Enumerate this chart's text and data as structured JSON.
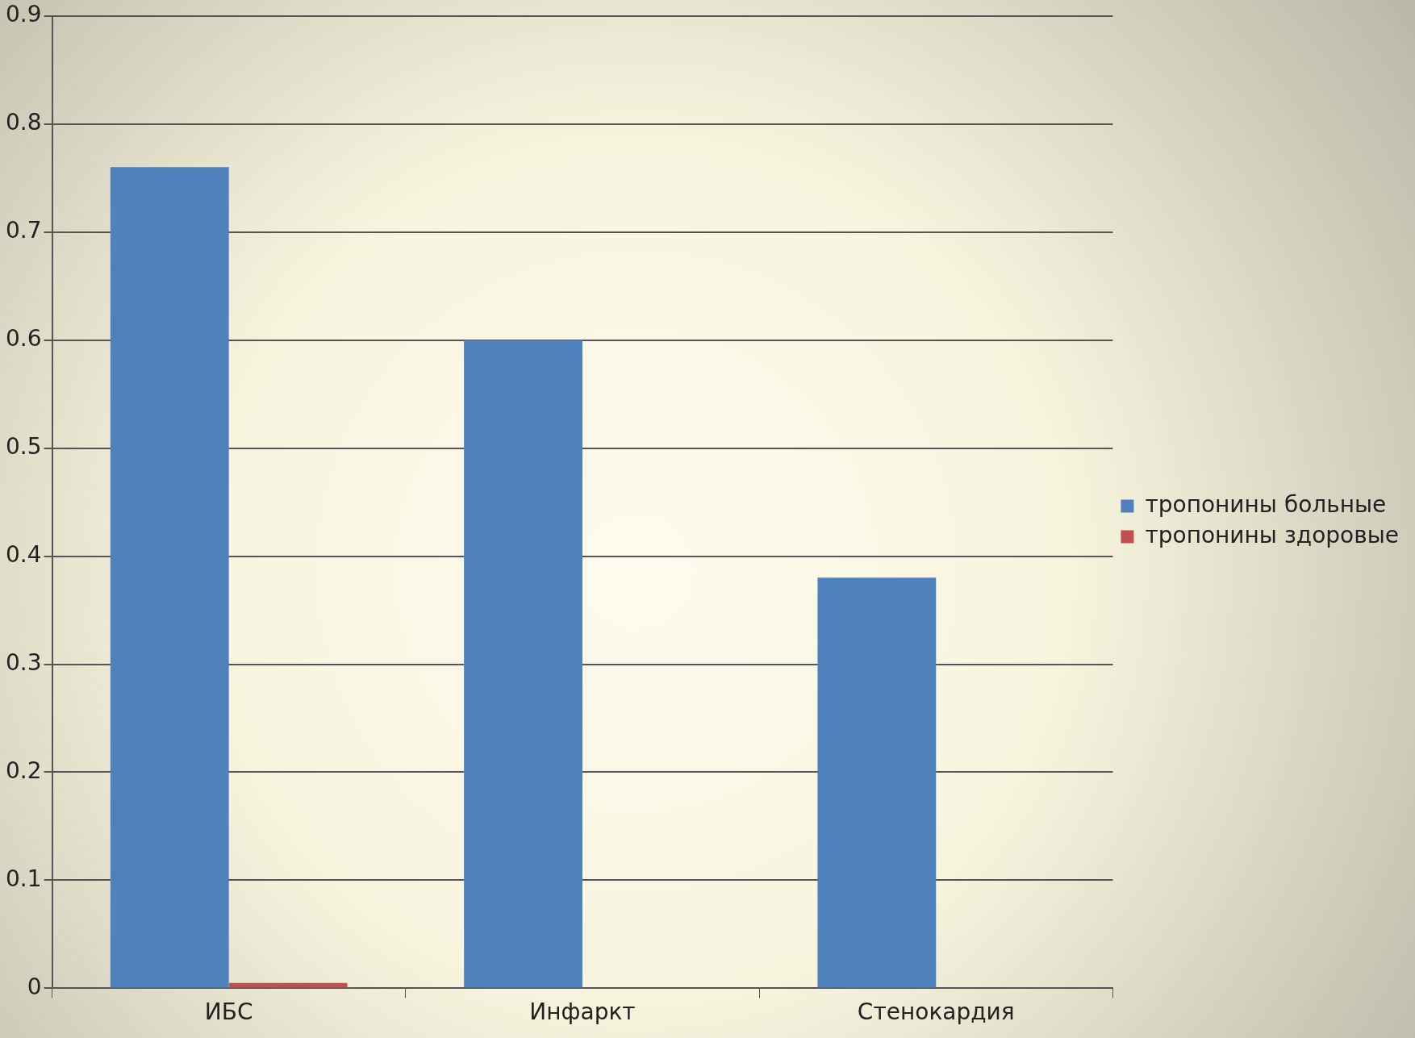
{
  "chart_data": {
    "type": "bar",
    "categories": [
      "ИБС",
      "Инфаркт",
      "Стенокардия"
    ],
    "series": [
      {
        "name": "тропонины больные",
        "color": "#4f81bd",
        "values": [
          0.76,
          0.6,
          0.38
        ]
      },
      {
        "name": "тропонины здоровые",
        "color": "#c0504d",
        "values": [
          0.005,
          0,
          0
        ]
      }
    ],
    "ylim": [
      0,
      0.9
    ],
    "yticks": [
      0,
      0.1,
      0.2,
      0.3,
      0.4,
      0.5,
      0.6,
      0.7,
      0.8,
      0.9
    ],
    "grid": "y",
    "legend": "right"
  }
}
